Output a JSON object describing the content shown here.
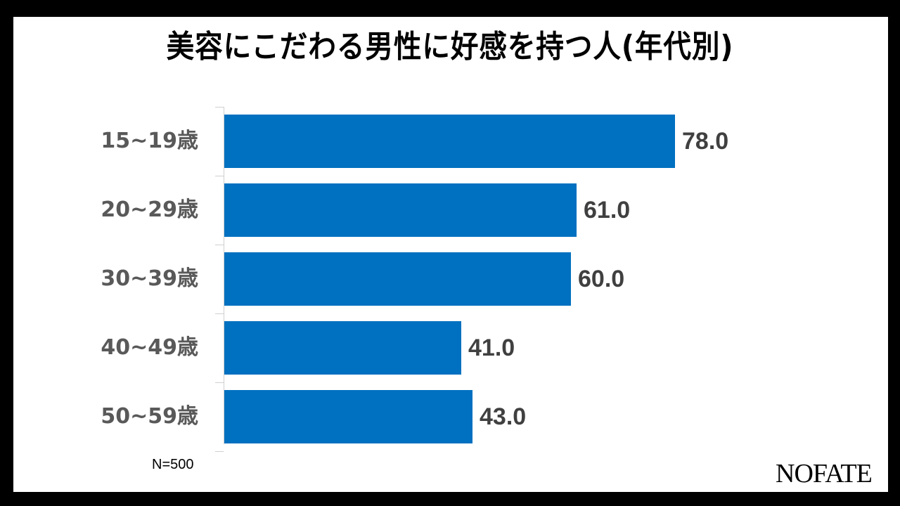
{
  "title": "美容にこだわる男性に好感を持つ人(年代別)",
  "note": "N=500",
  "logo": "NOFATE",
  "colors": {
    "bar": "#0070c0",
    "value_text": "#404040",
    "category_text": "#595959",
    "frame": "#000000"
  },
  "chart_data": {
    "type": "bar",
    "orientation": "horizontal",
    "title": "美容にこだわる男性に好感を持つ人(年代別)",
    "categories": [
      "15~19歳",
      "20~29歳",
      "30~39歳",
      "40~49歳",
      "50~59歳"
    ],
    "values": [
      78.0,
      61.0,
      60.0,
      41.0,
      43.0
    ],
    "labels": [
      "78.0",
      "61.0",
      "60.0",
      "41.0",
      "43.0"
    ],
    "xlabel": "",
    "ylabel": "",
    "grid": false,
    "legend": null,
    "annotations": [
      "N=500"
    ]
  }
}
